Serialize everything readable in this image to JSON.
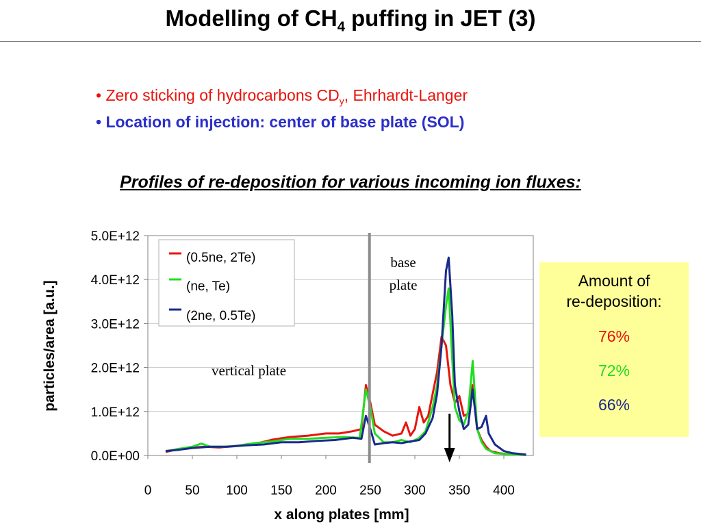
{
  "slide": {
    "title_main": "Modelling of CH",
    "title_sub": "4",
    "title_end": " puffing in JET (3)",
    "bullet1_main": "• Zero sticking of hydrocarbons CD",
    "bullet1_sub": "y",
    "bullet1_end": ", Ehrhardt-Langer",
    "bullet2": "• Location of injection: center of base plate (SOL)",
    "subtitle": "Profiles of re-deposition for various incoming ion fluxes:"
  },
  "box": {
    "heading_line1": "Amount of",
    "heading_line2": "re-deposition:",
    "values": [
      {
        "text": "76%",
        "color": "#e8140c"
      },
      {
        "text": "72%",
        "color": "#22dd22"
      },
      {
        "text": "66%",
        "color": "#1a2a8c"
      }
    ]
  },
  "chart_data": {
    "type": "line",
    "xlabel": "x along plates [mm]",
    "ylabel": "particles/area [a.u.]",
    "xlim": [
      0,
      425
    ],
    "ylim": [
      0,
      5000000000000.0
    ],
    "x_ticks": [
      "0",
      "50",
      "100",
      "150",
      "200",
      "250",
      "300",
      "350",
      "400"
    ],
    "y_ticks": [
      "0.0E+00",
      "1.0E+12",
      "2.0E+12",
      "3.0E+12",
      "4.0E+12",
      "5.0E+12"
    ],
    "grid": "horizontal",
    "legend_position": "top-left",
    "annotations": [
      {
        "text": "vertical plate"
      },
      {
        "text_line1": "base",
        "text_line2": "plate"
      }
    ],
    "divider_x": 249,
    "arrow_x": 339,
    "series": [
      {
        "name": "(0.5ne, 2Te)",
        "color": "#e8140c",
        "points": [
          [
            20,
            0.08
          ],
          [
            35,
            0.15
          ],
          [
            50,
            0.18
          ],
          [
            65,
            0.2
          ],
          [
            80,
            0.18
          ],
          [
            100,
            0.22
          ],
          [
            120,
            0.26
          ],
          [
            140,
            0.36
          ],
          [
            160,
            0.42
          ],
          [
            180,
            0.45
          ],
          [
            200,
            0.5
          ],
          [
            215,
            0.5
          ],
          [
            230,
            0.55
          ],
          [
            240,
            0.6
          ],
          [
            245,
            1.6
          ],
          [
            250,
            1.2
          ],
          [
            255,
            0.7
          ],
          [
            265,
            0.55
          ],
          [
            275,
            0.45
          ],
          [
            285,
            0.5
          ],
          [
            290,
            0.75
          ],
          [
            295,
            0.45
          ],
          [
            300,
            0.6
          ],
          [
            305,
            1.1
          ],
          [
            310,
            0.75
          ],
          [
            315,
            0.9
          ],
          [
            320,
            1.4
          ],
          [
            325,
            1.9
          ],
          [
            330,
            2.7
          ],
          [
            335,
            2.5
          ],
          [
            340,
            1.6
          ],
          [
            345,
            1.2
          ],
          [
            350,
            1.35
          ],
          [
            355,
            0.9
          ],
          [
            360,
            0.95
          ],
          [
            365,
            1.6
          ],
          [
            370,
            0.6
          ],
          [
            375,
            0.35
          ],
          [
            380,
            0.2
          ],
          [
            385,
            0.1
          ],
          [
            395,
            0.05
          ],
          [
            410,
            0.02
          ],
          [
            425,
            0.01
          ]
        ]
      },
      {
        "name": "(ne, Te)",
        "color": "#22dd22",
        "points": [
          [
            20,
            0.1
          ],
          [
            35,
            0.15
          ],
          [
            50,
            0.2
          ],
          [
            60,
            0.27
          ],
          [
            70,
            0.2
          ],
          [
            85,
            0.2
          ],
          [
            100,
            0.22
          ],
          [
            120,
            0.28
          ],
          [
            140,
            0.32
          ],
          [
            160,
            0.38
          ],
          [
            180,
            0.38
          ],
          [
            200,
            0.4
          ],
          [
            220,
            0.42
          ],
          [
            238,
            0.4
          ],
          [
            245,
            1.5
          ],
          [
            250,
            1.1
          ],
          [
            255,
            0.5
          ],
          [
            265,
            0.3
          ],
          [
            275,
            0.3
          ],
          [
            285,
            0.35
          ],
          [
            295,
            0.3
          ],
          [
            305,
            0.4
          ],
          [
            312,
            0.55
          ],
          [
            320,
            1.1
          ],
          [
            325,
            1.6
          ],
          [
            330,
            2.5
          ],
          [
            335,
            3.4
          ],
          [
            338,
            3.8
          ],
          [
            342,
            2.2
          ],
          [
            345,
            1.1
          ],
          [
            350,
            0.8
          ],
          [
            355,
            0.7
          ],
          [
            360,
            1.0
          ],
          [
            365,
            2.15
          ],
          [
            370,
            0.6
          ],
          [
            375,
            0.3
          ],
          [
            380,
            0.15
          ],
          [
            390,
            0.05
          ],
          [
            410,
            0.02
          ],
          [
            425,
            0.01
          ]
        ]
      },
      {
        "name": "(2ne, 0.5Te)",
        "color": "#1a2a8c",
        "points": [
          [
            20,
            0.1
          ],
          [
            35,
            0.13
          ],
          [
            50,
            0.17
          ],
          [
            70,
            0.2
          ],
          [
            90,
            0.2
          ],
          [
            110,
            0.23
          ],
          [
            130,
            0.25
          ],
          [
            150,
            0.3
          ],
          [
            170,
            0.3
          ],
          [
            190,
            0.33
          ],
          [
            210,
            0.35
          ],
          [
            230,
            0.4
          ],
          [
            240,
            0.38
          ],
          [
            245,
            0.9
          ],
          [
            250,
            0.6
          ],
          [
            255,
            0.25
          ],
          [
            265,
            0.28
          ],
          [
            275,
            0.3
          ],
          [
            285,
            0.28
          ],
          [
            295,
            0.32
          ],
          [
            305,
            0.35
          ],
          [
            312,
            0.5
          ],
          [
            320,
            0.85
          ],
          [
            325,
            1.4
          ],
          [
            330,
            2.5
          ],
          [
            335,
            4.2
          ],
          [
            338,
            4.5
          ],
          [
            342,
            3.2
          ],
          [
            345,
            1.6
          ],
          [
            350,
            1.0
          ],
          [
            355,
            0.6
          ],
          [
            360,
            0.7
          ],
          [
            365,
            1.5
          ],
          [
            370,
            0.6
          ],
          [
            375,
            0.65
          ],
          [
            380,
            0.9
          ],
          [
            383,
            0.5
          ],
          [
            390,
            0.25
          ],
          [
            400,
            0.1
          ],
          [
            410,
            0.05
          ],
          [
            425,
            0.02
          ]
        ]
      }
    ]
  }
}
